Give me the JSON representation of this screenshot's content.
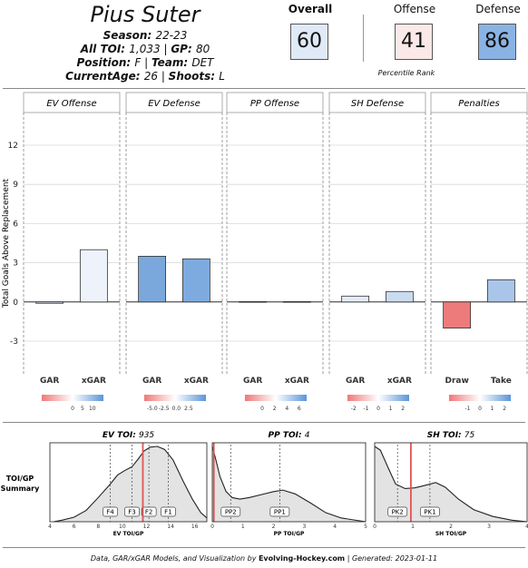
{
  "header": {
    "player_name": "Pius Suter",
    "season_label": "Season",
    "season_value": "22-23",
    "toi_label": "All TOI",
    "toi_value": "1,033",
    "gp_label": "GP",
    "gp_value": "80",
    "position_label": "Position",
    "position_value": "F",
    "team_label": "Team",
    "team_value": "DET",
    "age_label": "CurrentAge",
    "age_value": "26",
    "shoots_label": "Shoots",
    "shoots_value": "L"
  },
  "scores": {
    "overall": {
      "label": "Overall",
      "value": "60",
      "color": "#dfeaf6"
    },
    "offense": {
      "label": "Offense",
      "value": "41",
      "color": "#fbe8e8"
    },
    "defense": {
      "label": "Defense",
      "value": "86",
      "color": "#8ab3e3"
    },
    "percentile_label": "Percentile Rank"
  },
  "chart_data": [
    {
      "type": "bar",
      "ylabel": "Total Goals Above Replacement",
      "ylim": [
        -5.5,
        14.5
      ],
      "yticks": [
        -3,
        0,
        3,
        6,
        9,
        12
      ],
      "grid": true,
      "panels": [
        {
          "title": "EV Offense",
          "categories": [
            "GAR",
            "xGAR"
          ],
          "values": [
            -0.1,
            4.0
          ],
          "colors": [
            "#dde6f2",
            "#eef3fb"
          ],
          "legend": {
            "ticks": [
              "0",
              "5",
              "10"
            ],
            "tick_pos": [
              0.5,
              0.66,
              0.82
            ]
          }
        },
        {
          "title": "EV Defense",
          "categories": [
            "GAR",
            "xGAR"
          ],
          "values": [
            3.5,
            3.3
          ],
          "colors": [
            "#7aa8dc",
            "#7eabdf"
          ],
          "legend": {
            "ticks": [
              "-5.0",
              "-2.5",
              "0.0",
              "2.5"
            ],
            "tick_pos": [
              0.13,
              0.32,
              0.52,
              0.72
            ]
          }
        },
        {
          "title": "PP Offense",
          "categories": [
            "GAR",
            "xGAR"
          ],
          "values": [
            0.03,
            0.03
          ],
          "colors": [
            "#e9eef6",
            "#e9eef6"
          ],
          "legend": {
            "ticks": [
              "0",
              "2",
              "4",
              "6"
            ],
            "tick_pos": [
              0.28,
              0.48,
              0.68,
              0.88
            ]
          }
        },
        {
          "title": "SH Defense",
          "categories": [
            "GAR",
            "xGAR"
          ],
          "values": [
            0.45,
            0.8
          ],
          "colors": [
            "#e4ecf7",
            "#cbdcf1"
          ],
          "legend": {
            "ticks": [
              "-2",
              "-1",
              "0",
              "1",
              "2"
            ],
            "tick_pos": [
              0.1,
              0.3,
              0.5,
              0.7,
              0.9
            ]
          }
        },
        {
          "title": "Penalties",
          "categories": [
            "Draw",
            "Take"
          ],
          "values": [
            -2.0,
            1.7
          ],
          "colors": [
            "#ee7b7b",
            "#a9c6ea"
          ],
          "legend": {
            "ticks": [
              "-1",
              "0",
              "1",
              "2"
            ],
            "tick_pos": [
              0.3,
              0.5,
              0.7,
              0.9
            ]
          }
        }
      ]
    },
    {
      "type": "area",
      "ylabel_line1": "TOI/GP",
      "ylabel_line2": "Summary",
      "panels": [
        {
          "title_label": "EV TOI",
          "title_value": "935",
          "xlabel": "EV TOI/GP",
          "xlim": [
            4,
            17
          ],
          "xticks": [
            4,
            6,
            8,
            10,
            12,
            14,
            16
          ],
          "player_value": 11.7,
          "markers": [
            {
              "label": "F4",
              "x": 9.0
            },
            {
              "label": "F3",
              "x": 10.8
            },
            {
              "label": "F2",
              "x": 12.2
            },
            {
              "label": "F1",
              "x": 13.8
            }
          ],
          "density": [
            [
              4.3,
              0.0
            ],
            [
              5,
              0.02
            ],
            [
              6,
              0.06
            ],
            [
              7,
              0.15
            ],
            [
              8,
              0.32
            ],
            [
              9,
              0.5
            ],
            [
              9.6,
              0.62
            ],
            [
              10.2,
              0.68
            ],
            [
              10.8,
              0.73
            ],
            [
              11.3,
              0.83
            ],
            [
              11.8,
              0.94
            ],
            [
              12.3,
              0.99
            ],
            [
              12.9,
              1.0
            ],
            [
              13.5,
              0.96
            ],
            [
              14.2,
              0.82
            ],
            [
              15,
              0.55
            ],
            [
              15.8,
              0.3
            ],
            [
              16.5,
              0.12
            ],
            [
              17,
              0.05
            ]
          ]
        },
        {
          "title_label": "PP TOI",
          "title_value": "4",
          "xlabel": "PP TOI/GP",
          "xlim": [
            0,
            5
          ],
          "xticks": [
            0,
            1,
            2,
            3,
            4,
            5
          ],
          "player_value": 0.05,
          "markers": [
            {
              "label": "PP2",
              "x": 0.6
            },
            {
              "label": "PP1",
              "x": 2.2
            }
          ],
          "density": [
            [
              0,
              1.0
            ],
            [
              0.1,
              0.85
            ],
            [
              0.25,
              0.6
            ],
            [
              0.45,
              0.4
            ],
            [
              0.65,
              0.32
            ],
            [
              0.9,
              0.3
            ],
            [
              1.2,
              0.32
            ],
            [
              1.6,
              0.36
            ],
            [
              2.0,
              0.4
            ],
            [
              2.3,
              0.42
            ],
            [
              2.7,
              0.37
            ],
            [
              3.2,
              0.25
            ],
            [
              3.7,
              0.12
            ],
            [
              4.2,
              0.05
            ],
            [
              5,
              0.0
            ]
          ]
        },
        {
          "title_label": "SH TOI",
          "title_value": "75",
          "xlabel": "SH TOI/GP",
          "xlim": [
            0,
            4
          ],
          "xticks": [
            0,
            1,
            2,
            3,
            4
          ],
          "player_value": 0.95,
          "markers": [
            {
              "label": "PK2",
              "x": 0.6
            },
            {
              "label": "PK1",
              "x": 1.45
            }
          ],
          "density": [
            [
              0,
              1.0
            ],
            [
              0.15,
              0.95
            ],
            [
              0.35,
              0.72
            ],
            [
              0.55,
              0.5
            ],
            [
              0.8,
              0.44
            ],
            [
              1.05,
              0.45
            ],
            [
              1.3,
              0.48
            ],
            [
              1.6,
              0.52
            ],
            [
              1.85,
              0.46
            ],
            [
              2.2,
              0.3
            ],
            [
              2.6,
              0.16
            ],
            [
              3.1,
              0.07
            ],
            [
              3.6,
              0.02
            ],
            [
              4,
              0.0
            ]
          ]
        }
      ]
    }
  ],
  "footer": {
    "prefix": "Data, GAR/xGAR Models, and Visualization by ",
    "brand": "Evolving-Hockey.com",
    "suffix": " | Generated: 2023-01-11"
  }
}
